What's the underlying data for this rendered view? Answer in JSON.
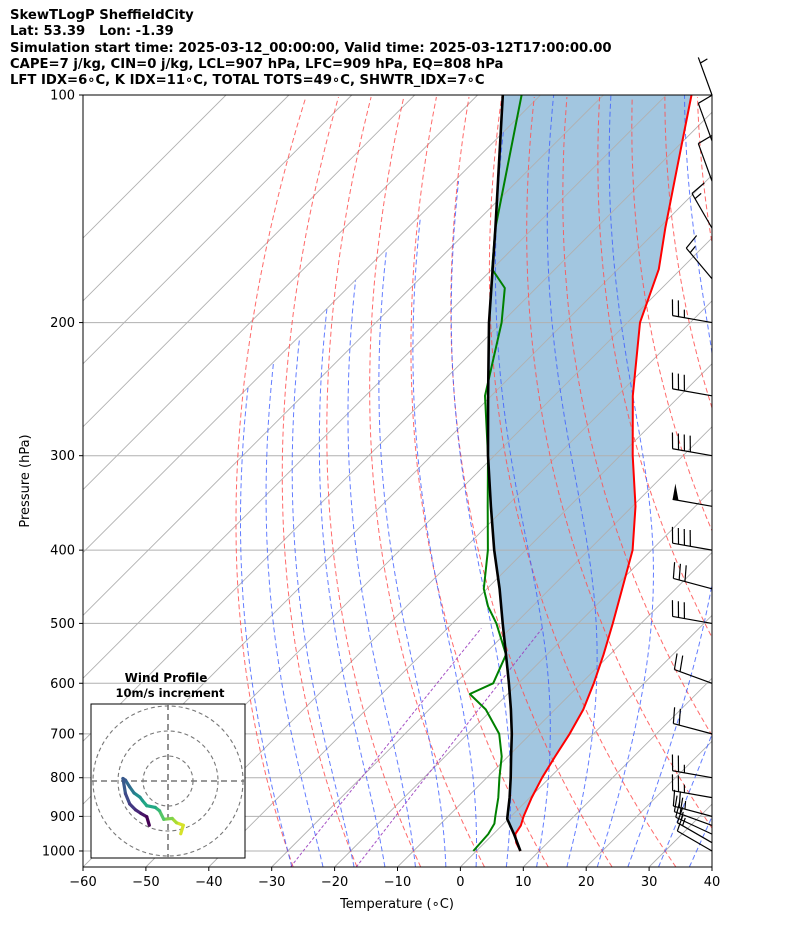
{
  "header": {
    "lines": [
      "SkewTLogP SheffieldCity",
      "Lat: 53.39   Lon: -1.39",
      "Simulation start time: 2025-03-12_00:00:00, Valid time: 2025-03-12T17:00:00.00",
      "CAPE=7 j/kg, CIN=0 j/kg, LCL=907 hPa, LFC=909 hPa, EQ=808 hPa",
      "LFT IDX=6∘C, K IDX=11∘C, TOTAL TOTS=49∘C, SHWTR_IDX=7∘C"
    ]
  },
  "chart_data": {
    "type": "line",
    "subtype": "skew-t log-p",
    "xlabel": "Temperature (∘C)",
    "ylabel": "Pressure (hPa)",
    "xlim": [
      -60,
      40
    ],
    "ylim": [
      1050,
      100
    ],
    "y_scale": "log",
    "x_ticks": [
      "−60",
      "−50",
      "−40",
      "−30",
      "−20",
      "−10",
      "0",
      "10",
      "20",
      "30",
      "40"
    ],
    "y_ticks": [
      "100",
      "200",
      "300",
      "400",
      "500",
      "600",
      "700",
      "800",
      "900",
      "1000"
    ],
    "grid": true,
    "series": [
      {
        "role": "temperature",
        "color": "#ff0000",
        "points": [
          [
            1000,
            7
          ],
          [
            975,
            5
          ],
          [
            950,
            3.5
          ],
          [
            925,
            3
          ],
          [
            900,
            2
          ],
          [
            850,
            0.3
          ],
          [
            800,
            -1.2
          ],
          [
            750,
            -2.5
          ],
          [
            700,
            -3.8
          ],
          [
            650,
            -5.5
          ],
          [
            600,
            -8
          ],
          [
            550,
            -11
          ],
          [
            500,
            -14.5
          ],
          [
            450,
            -18.5
          ],
          [
            400,
            -23
          ],
          [
            350,
            -29.5
          ],
          [
            300,
            -38
          ],
          [
            250,
            -47.5
          ],
          [
            200,
            -58
          ],
          [
            170,
            -63.5
          ],
          [
            150,
            -69
          ],
          [
            130,
            -75
          ],
          [
            110,
            -82
          ],
          [
            100,
            -86
          ]
        ]
      },
      {
        "role": "dewpoint",
        "color": "#008000",
        "points": [
          [
            1000,
            -0.5
          ],
          [
            950,
            -0.8
          ],
          [
            920,
            -1.5
          ],
          [
            900,
            -2.5
          ],
          [
            850,
            -5
          ],
          [
            800,
            -8
          ],
          [
            750,
            -11
          ],
          [
            700,
            -15
          ],
          [
            650,
            -21
          ],
          [
            620,
            -26
          ],
          [
            600,
            -24
          ],
          [
            550,
            -26.5
          ],
          [
            500,
            -33
          ],
          [
            475,
            -37
          ],
          [
            450,
            -40.5
          ],
          [
            400,
            -46
          ],
          [
            350,
            -53
          ],
          [
            300,
            -61
          ],
          [
            250,
            -71
          ],
          [
            200,
            -80
          ],
          [
            180,
            -85
          ],
          [
            170,
            -90
          ],
          [
            150,
            -96
          ],
          [
            100,
            -113
          ]
        ]
      },
      {
        "role": "parcel",
        "color": "#000000",
        "points": [
          [
            1000,
            7
          ],
          [
            950,
            3.3
          ],
          [
            907,
            -0.2
          ],
          [
            850,
            -3.2
          ],
          [
            800,
            -6.2
          ],
          [
            750,
            -9.5
          ],
          [
            700,
            -13
          ],
          [
            650,
            -17
          ],
          [
            600,
            -21.5
          ],
          [
            550,
            -26.5
          ],
          [
            500,
            -32
          ],
          [
            450,
            -38
          ],
          [
            400,
            -45
          ],
          [
            350,
            -52.5
          ],
          [
            300,
            -61
          ],
          [
            250,
            -70.5
          ],
          [
            200,
            -82
          ],
          [
            150,
            -96
          ],
          [
            100,
            -116
          ]
        ]
      }
    ],
    "wind_barbs": [
      {
        "p": 1000,
        "speed": 10,
        "dir": 300
      },
      {
        "p": 975,
        "speed": 15,
        "dir": 300
      },
      {
        "p": 950,
        "speed": 15,
        "dir": 295
      },
      {
        "p": 925,
        "speed": 20,
        "dir": 290
      },
      {
        "p": 900,
        "speed": 25,
        "dir": 285
      },
      {
        "p": 850,
        "speed": 25,
        "dir": 280
      },
      {
        "p": 800,
        "speed": 25,
        "dir": 280
      },
      {
        "p": 700,
        "speed": 20,
        "dir": 285
      },
      {
        "p": 600,
        "speed": 20,
        "dir": 290
      },
      {
        "p": 500,
        "speed": 30,
        "dir": 280
      },
      {
        "p": 450,
        "speed": 30,
        "dir": 285
      },
      {
        "p": 400,
        "speed": 40,
        "dir": 280
      },
      {
        "p": 350,
        "speed": 50,
        "dir": 280
      },
      {
        "p": 300,
        "speed": 40,
        "dir": 280
      },
      {
        "p": 250,
        "speed": 30,
        "dir": 280
      },
      {
        "p": 200,
        "speed": 25,
        "dir": 280
      },
      {
        "p": 175,
        "speed": 15,
        "dir": 320
      },
      {
        "p": 150,
        "speed": 15,
        "dir": 330
      },
      {
        "p": 130,
        "speed": 10,
        "dir": 340
      },
      {
        "p": 115,
        "speed": 10,
        "dir": 340
      },
      {
        "p": 100,
        "speed": 5,
        "dir": 340
      }
    ],
    "inset": {
      "title": "Wind Profile",
      "subtitle": "10m/s increment",
      "hodograph": [
        [
          1.5,
          1.5
        ],
        [
          1.8,
          0.5
        ],
        [
          1,
          0.2
        ],
        [
          0.5,
          -0.3
        ],
        [
          -0.5,
          -0.2
        ],
        [
          -1,
          -1.2
        ],
        [
          -1.5,
          -1.6
        ],
        [
          -2.5,
          -1.8
        ],
        [
          -3,
          -2.4
        ],
        [
          -3.3,
          -2.8
        ],
        [
          -4,
          -3.3
        ],
        [
          -4.5,
          -4
        ],
        [
          -5,
          -4.8
        ],
        [
          -5.3,
          -5
        ],
        [
          -5,
          -3.2
        ],
        [
          -4.5,
          -2
        ],
        [
          -3.8,
          -1.3
        ],
        [
          -3.2,
          -0.9
        ],
        [
          -2.5,
          -0.5
        ],
        [
          -2.2,
          0.5
        ]
      ]
    }
  }
}
